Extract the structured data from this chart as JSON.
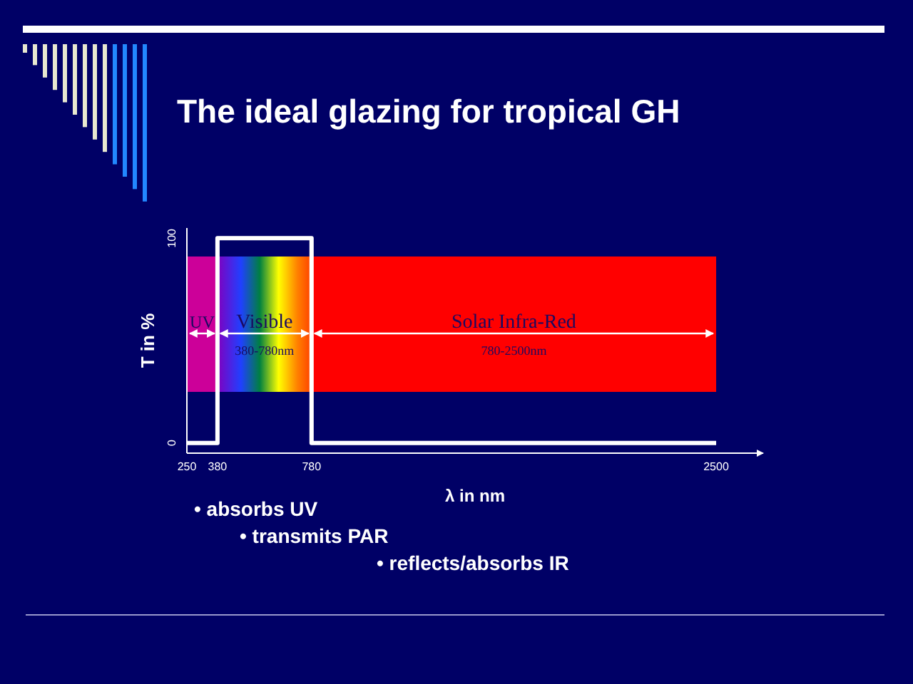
{
  "chart_data": {
    "type": "step",
    "title": "The ideal glazing for tropical GH",
    "xlabel": "λ  in nm",
    "ylabel": "T in %",
    "x": [
      250,
      380,
      780,
      2500
    ],
    "series": [
      {
        "color": "#ffffff",
        "values": [
          0,
          100,
          0,
          0
        ]
      }
    ],
    "xlim": [
      250,
      2700
    ],
    "xticks": [
      250,
      380,
      780,
      2500
    ],
    "ylim": [
      -5,
      105
    ],
    "yticks": [
      0,
      100
    ],
    "grid": false,
    "marker": "none",
    "line_style": "solid",
    "bands": [
      {
        "axis": "x",
        "from": 250,
        "to": 380,
        "label": "UV",
        "color": "#cc0099"
      },
      {
        "axis": "x",
        "from": 380,
        "to": 780,
        "label": "Visible"
      },
      {
        "axis": "x",
        "from": 780,
        "to": 2500,
        "label": "Solar Infra-Red",
        "color": "#ff0000"
      }
    ],
    "annotations": [
      "380-780nm",
      "780-2500nm",
      "• absorbs UV",
      "•  transmits PAR",
      "• reflects/absorbs IR"
    ]
  }
}
